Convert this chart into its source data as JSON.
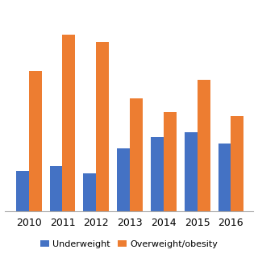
{
  "years": [
    "2010",
    "2011",
    "2012",
    "2013",
    "2014",
    "2015",
    "2016"
  ],
  "underweight": [
    18,
    20,
    17,
    28,
    33,
    35,
    30
  ],
  "overweight": [
    62,
    78,
    75,
    50,
    44,
    58,
    42
  ],
  "underweight_color": "#4472C4",
  "overweight_color": "#ED7D31",
  "legend_labels": [
    "Underweight",
    "Overweight/obesity"
  ],
  "bar_width": 0.38,
  "ylim": [
    0,
    90
  ],
  "background_color": "#ffffff",
  "tick_fontsize": 9,
  "legend_fontsize": 8
}
